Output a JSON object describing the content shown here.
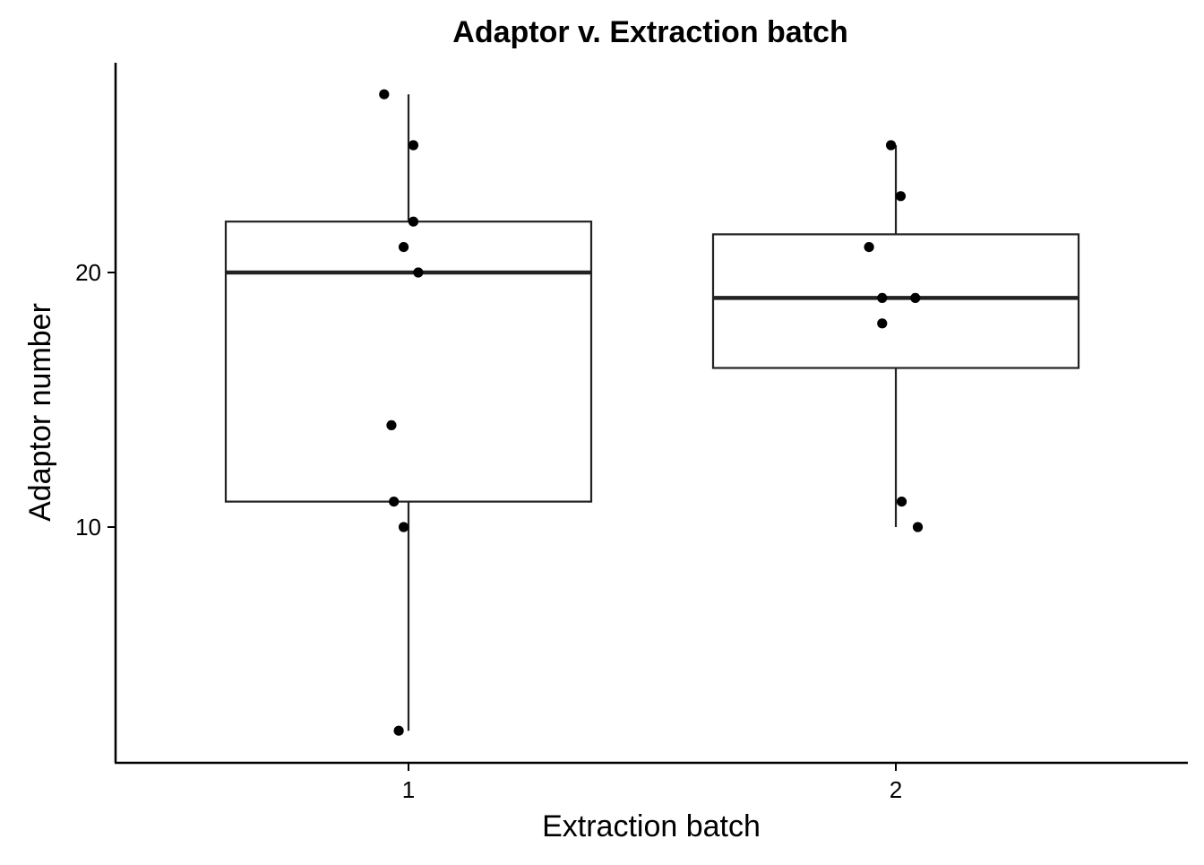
{
  "chart_data": {
    "type": "box",
    "title": "Adaptor v. Extraction batch",
    "xlabel": "Extraction batch",
    "ylabel": "Adaptor number",
    "categories": [
      "1",
      "2"
    ],
    "ylim": [
      1,
      28.5
    ],
    "yticks": [
      10,
      20
    ],
    "grid": false,
    "legend": "none",
    "boxes": [
      {
        "category": "1",
        "whisker_low": 2,
        "q1": 11,
        "median": 20,
        "q3": 22,
        "whisker_high": 27
      },
      {
        "category": "2",
        "whisker_low": 10,
        "q1": 16.25,
        "median": 19,
        "q3": 21.5,
        "whisker_high": 25
      }
    ],
    "points": [
      {
        "category": "1",
        "jitter": -0.05,
        "y": 27
      },
      {
        "category": "1",
        "jitter": 0.01,
        "y": 25
      },
      {
        "category": "1",
        "jitter": 0.01,
        "y": 22
      },
      {
        "category": "1",
        "jitter": -0.01,
        "y": 21
      },
      {
        "category": "1",
        "jitter": 0.02,
        "y": 20
      },
      {
        "category": "1",
        "jitter": -0.035,
        "y": 14
      },
      {
        "category": "1",
        "jitter": -0.03,
        "y": 11
      },
      {
        "category": "1",
        "jitter": -0.01,
        "y": 10
      },
      {
        "category": "1",
        "jitter": -0.02,
        "y": 2
      },
      {
        "category": "2",
        "jitter": -0.01,
        "y": 25
      },
      {
        "category": "2",
        "jitter": 0.01,
        "y": 23
      },
      {
        "category": "2",
        "jitter": -0.055,
        "y": 21
      },
      {
        "category": "2",
        "jitter": -0.028,
        "y": 19
      },
      {
        "category": "2",
        "jitter": 0.04,
        "y": 19
      },
      {
        "category": "2",
        "jitter": -0.028,
        "y": 18
      },
      {
        "category": "2",
        "jitter": 0.012,
        "y": 11
      },
      {
        "category": "2",
        "jitter": 0.045,
        "y": 10
      }
    ]
  }
}
